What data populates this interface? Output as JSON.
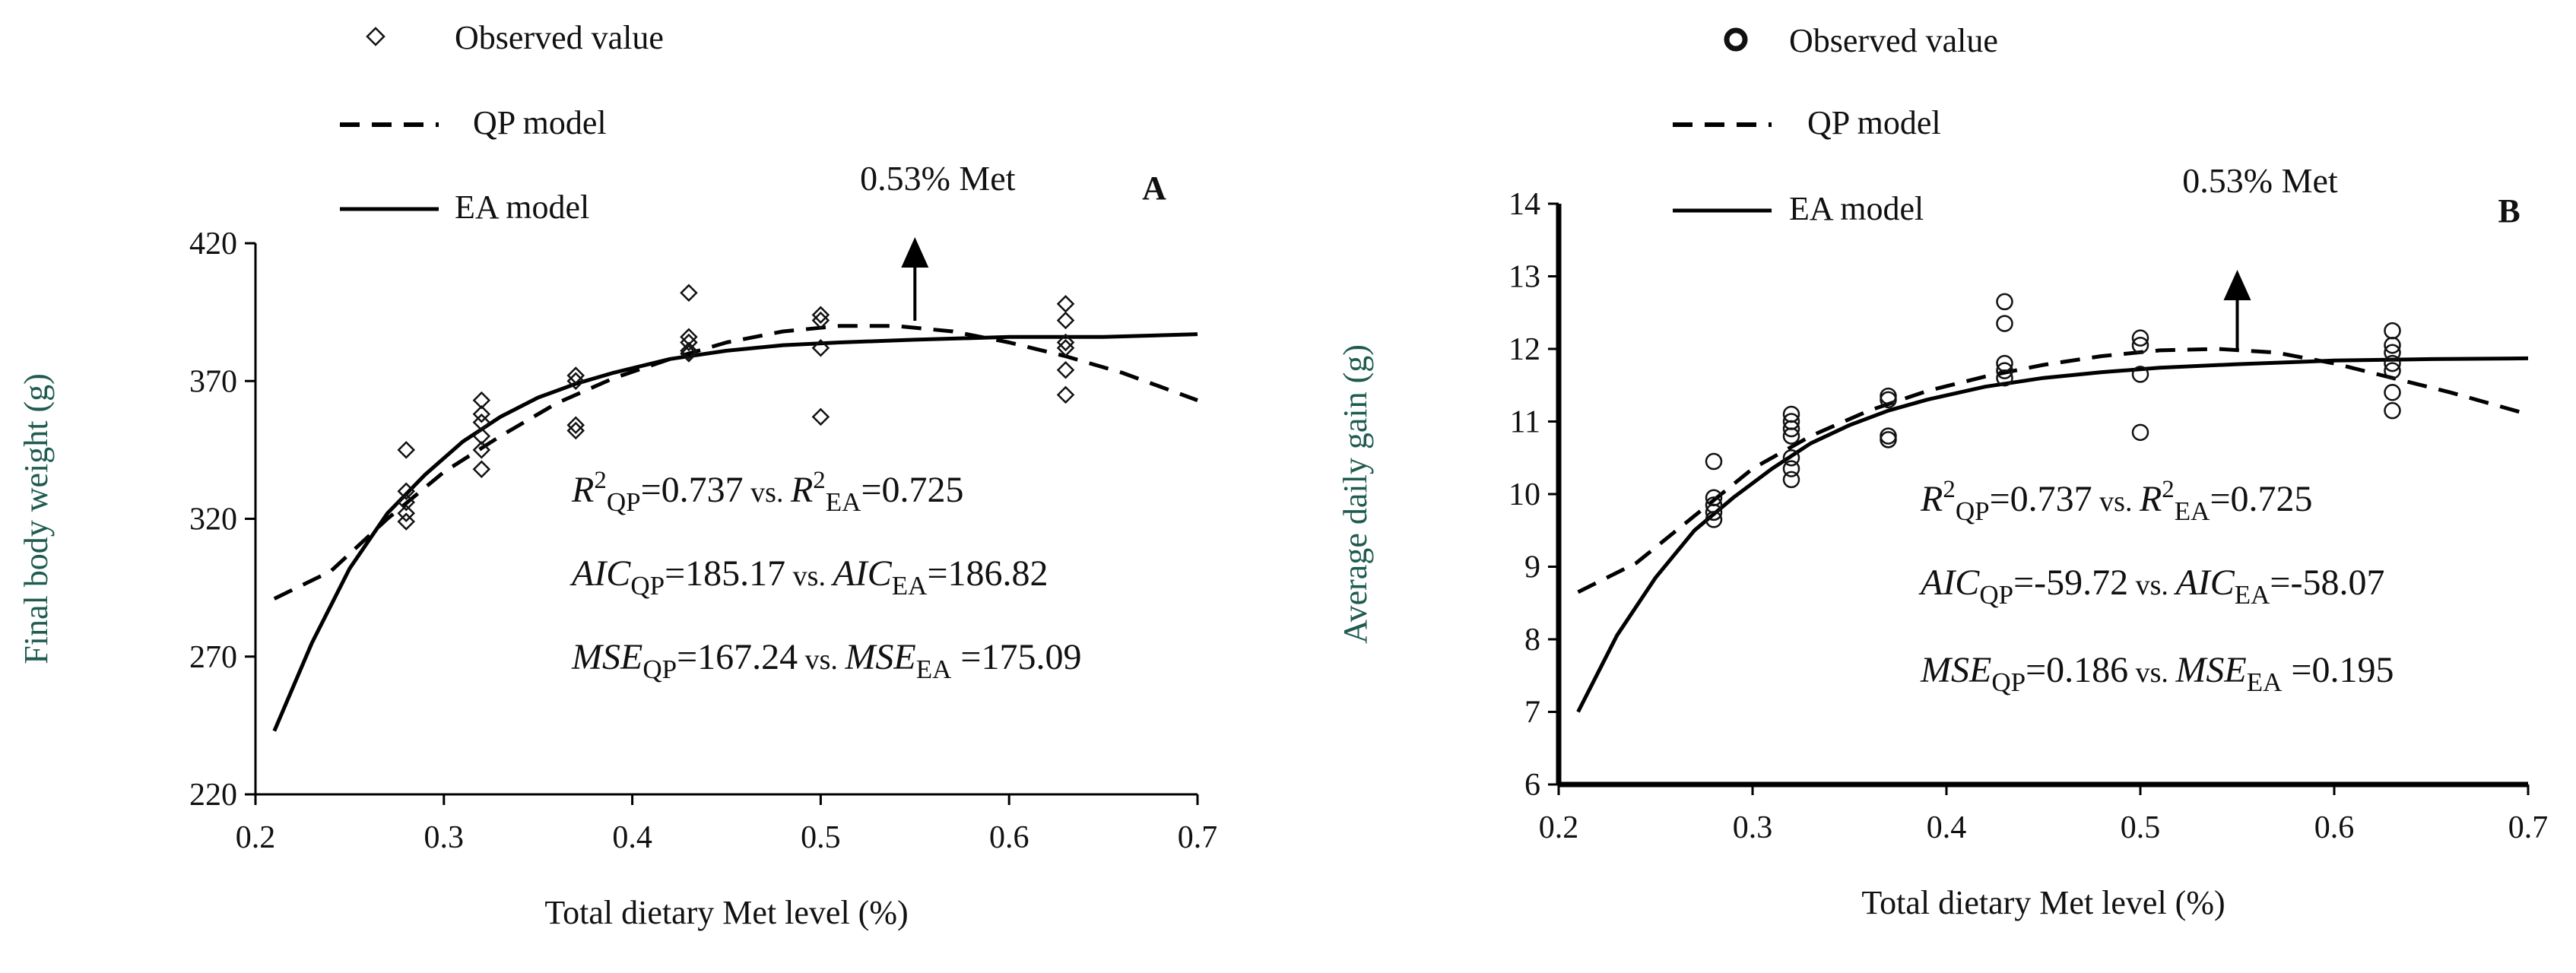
{
  "chart_data": [
    {
      "type": "scatter",
      "panel_label": "A",
      "xlabel": "Total dietary Met level (%)",
      "ylabel": "Final body weight (g)",
      "xlim": [
        0.2,
        0.7
      ],
      "ylim": [
        220,
        420
      ],
      "xticks": [
        0.2,
        0.3,
        0.4,
        0.5,
        0.6,
        0.7
      ],
      "xtick_labels": [
        "0.2",
        "0.3",
        "0.4",
        "0.5",
        "0.6",
        "0.7"
      ],
      "yticks": [
        220,
        270,
        320,
        370,
        420
      ],
      "ytick_labels": [
        "220",
        "270",
        "320",
        "370",
        "420"
      ],
      "legend": {
        "observed": "Observed value",
        "qp": "QP model",
        "ea": "EA model"
      },
      "annotation": {
        "text": "0.53% Met",
        "x": 0.55
      },
      "stats": {
        "r2_prefix": "R",
        "r2_sup": "2",
        "sub_qp": "QP",
        "sub_ea": "EA",
        "vs": "vs.",
        "r2_qp": "=0.737",
        "r2_ea": "=0.725",
        "aic_label": "AIC",
        "aic_qp": "=185.17",
        "aic_ea": "=186.82",
        "mse_label": "MSE",
        "mse_qp": "=167.24",
        "mse_ea": " =175.09"
      },
      "marker": "diamond",
      "points": [
        [
          0.28,
          345
        ],
        [
          0.28,
          330
        ],
        [
          0.28,
          326
        ],
        [
          0.28,
          322
        ],
        [
          0.28,
          319
        ],
        [
          0.32,
          363
        ],
        [
          0.32,
          358
        ],
        [
          0.32,
          355
        ],
        [
          0.32,
          350
        ],
        [
          0.32,
          345
        ],
        [
          0.32,
          338
        ],
        [
          0.37,
          372
        ],
        [
          0.37,
          370
        ],
        [
          0.37,
          354
        ],
        [
          0.37,
          352
        ],
        [
          0.43,
          402
        ],
        [
          0.43,
          386
        ],
        [
          0.43,
          384
        ],
        [
          0.43,
          381
        ],
        [
          0.43,
          380
        ],
        [
          0.5,
          394
        ],
        [
          0.5,
          392
        ],
        [
          0.5,
          382
        ],
        [
          0.5,
          357
        ],
        [
          0.63,
          398
        ],
        [
          0.63,
          392
        ],
        [
          0.63,
          384
        ],
        [
          0.63,
          382
        ],
        [
          0.63,
          374
        ],
        [
          0.63,
          365
        ]
      ],
      "series": [
        {
          "name": "QP model",
          "style": "dashed",
          "x": [
            0.21,
            0.24,
            0.27,
            0.3,
            0.33,
            0.36,
            0.39,
            0.42,
            0.45,
            0.48,
            0.51,
            0.54,
            0.57,
            0.6,
            0.63,
            0.66,
            0.7
          ],
          "y": [
            291,
            301,
            320,
            337,
            350,
            362,
            371,
            378,
            384,
            388,
            390,
            390,
            388,
            384,
            379,
            373,
            363
          ]
        },
        {
          "name": "EA model",
          "style": "solid",
          "x": [
            0.21,
            0.23,
            0.25,
            0.27,
            0.29,
            0.31,
            0.33,
            0.35,
            0.37,
            0.39,
            0.42,
            0.45,
            0.48,
            0.51,
            0.55,
            0.6,
            0.65,
            0.7
          ],
          "y": [
            243,
            275,
            302,
            322,
            336,
            348,
            357,
            364,
            369,
            373,
            378,
            381,
            383,
            384,
            385,
            386,
            386,
            387
          ]
        }
      ]
    },
    {
      "type": "scatter",
      "panel_label": "B",
      "xlabel": "Total dietary Met level (%)",
      "ylabel": "Average daily gain (g)",
      "xlim": [
        0.2,
        0.7
      ],
      "ylim": [
        6,
        14
      ],
      "xticks": [
        0.2,
        0.3,
        0.4,
        0.5,
        0.6,
        0.7
      ],
      "xtick_labels": [
        "0.2",
        "0.3",
        "0.4",
        "0.5",
        "0.6",
        "0.7"
      ],
      "yticks": [
        6,
        7,
        8,
        9,
        10,
        11,
        12,
        13,
        14
      ],
      "ytick_labels": [
        "6",
        "7",
        "8",
        "9",
        "10",
        "11",
        "12",
        "13",
        "14"
      ],
      "legend": {
        "observed": "Observed value",
        "qp": "QP model",
        "ea": "EA model"
      },
      "annotation": {
        "text": "0.53% Met",
        "x": 0.55
      },
      "stats": {
        "r2_prefix": "R",
        "r2_sup": "2",
        "sub_qp": "QP",
        "sub_ea": "EA",
        "vs": "vs.",
        "r2_qp": "=0.737",
        "r2_ea": "=0.725",
        "aic_label": "AIC",
        "aic_qp": "=-59.72",
        "aic_ea": "=-58.07",
        "mse_label": "MSE",
        "mse_qp": "=0.186",
        "mse_ea": " =0.195"
      },
      "marker": "circle",
      "points": [
        [
          0.28,
          10.45
        ],
        [
          0.28,
          9.95
        ],
        [
          0.28,
          9.85
        ],
        [
          0.28,
          9.75
        ],
        [
          0.28,
          9.65
        ],
        [
          0.32,
          11.1
        ],
        [
          0.32,
          11.0
        ],
        [
          0.32,
          10.9
        ],
        [
          0.32,
          10.8
        ],
        [
          0.32,
          10.5
        ],
        [
          0.32,
          10.35
        ],
        [
          0.32,
          10.2
        ],
        [
          0.37,
          11.35
        ],
        [
          0.37,
          11.3
        ],
        [
          0.37,
          10.8
        ],
        [
          0.37,
          10.75
        ],
        [
          0.43,
          12.65
        ],
        [
          0.43,
          12.35
        ],
        [
          0.43,
          11.8
        ],
        [
          0.43,
          11.7
        ],
        [
          0.43,
          11.6
        ],
        [
          0.5,
          12.15
        ],
        [
          0.5,
          12.05
        ],
        [
          0.5,
          11.65
        ],
        [
          0.5,
          10.85
        ],
        [
          0.63,
          12.25
        ],
        [
          0.63,
          12.05
        ],
        [
          0.63,
          11.95
        ],
        [
          0.63,
          11.8
        ],
        [
          0.63,
          11.7
        ],
        [
          0.63,
          11.4
        ],
        [
          0.63,
          11.15
        ]
      ],
      "series": [
        {
          "name": "QP model",
          "style": "dashed",
          "x": [
            0.21,
            0.24,
            0.27,
            0.3,
            0.33,
            0.36,
            0.39,
            0.42,
            0.45,
            0.48,
            0.51,
            0.54,
            0.57,
            0.6,
            0.63,
            0.66,
            0.7
          ],
          "y": [
            8.65,
            9.05,
            9.7,
            10.35,
            10.8,
            11.15,
            11.42,
            11.62,
            11.78,
            11.9,
            11.98,
            12.0,
            11.95,
            11.8,
            11.6,
            11.4,
            11.1
          ]
        },
        {
          "name": "EA model",
          "style": "solid",
          "x": [
            0.21,
            0.23,
            0.25,
            0.27,
            0.29,
            0.31,
            0.33,
            0.35,
            0.37,
            0.39,
            0.42,
            0.45,
            0.48,
            0.51,
            0.55,
            0.6,
            0.65,
            0.7
          ],
          "y": [
            7.0,
            8.05,
            8.85,
            9.5,
            9.95,
            10.35,
            10.7,
            10.95,
            11.15,
            11.3,
            11.48,
            11.6,
            11.68,
            11.74,
            11.79,
            11.84,
            11.86,
            11.87
          ]
        }
      ]
    }
  ]
}
